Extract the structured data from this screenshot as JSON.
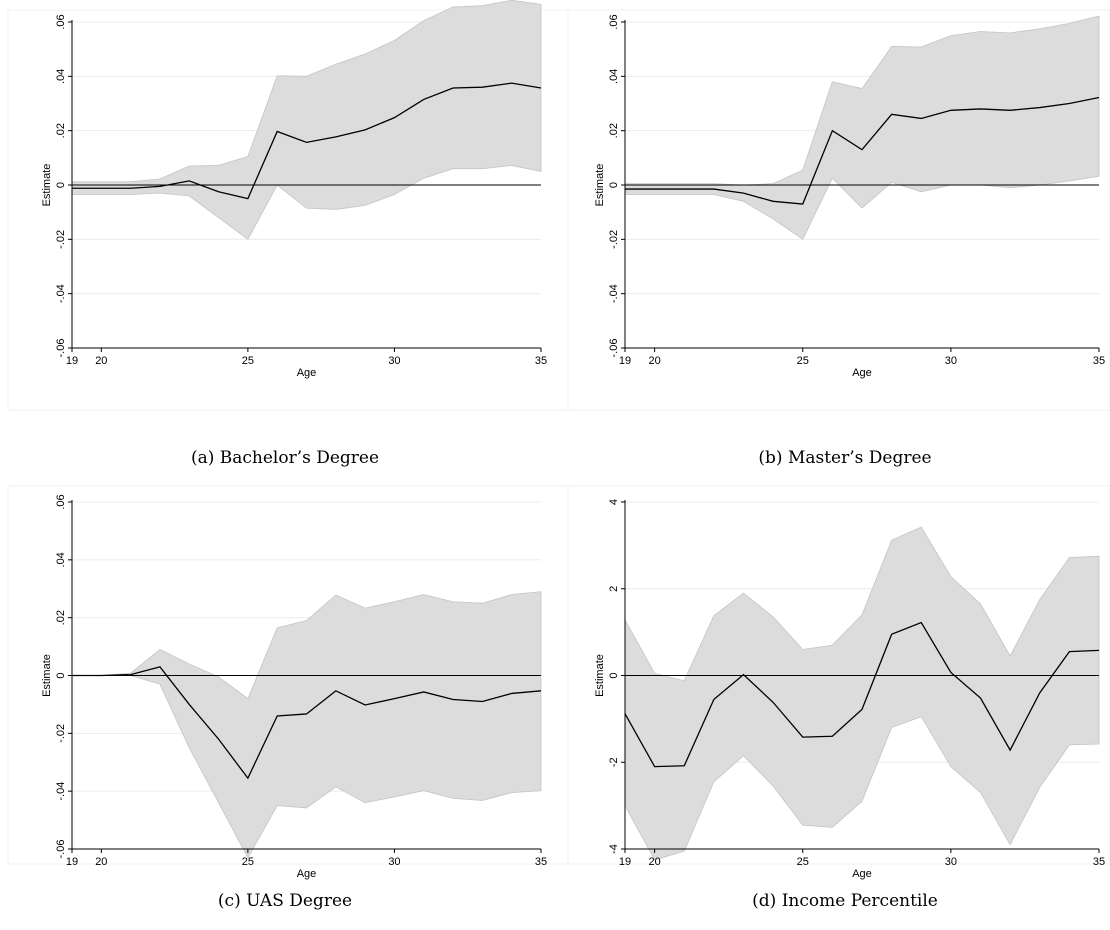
{
  "chart_data": [
    {
      "type": "line",
      "caption": "(a) Bachelor’s Degree",
      "xlabel": "Age",
      "ylabel": "Estimate",
      "xlim": [
        19,
        35
      ],
      "ylim": [
        -0.06,
        0.06
      ],
      "xticks": [
        19,
        20,
        25,
        30,
        35
      ],
      "xtick_labels": [
        "19",
        "20",
        "25",
        "30",
        "35"
      ],
      "yticks": [
        -0.06,
        -0.04,
        -0.02,
        0,
        0.02,
        0.04,
        0.06
      ],
      "ytick_labels": [
        "-.06",
        "-.04",
        "-.02",
        "0",
        ".02",
        ".04",
        ".06"
      ],
      "grid": true,
      "reference_line_y": 0,
      "x": [
        19,
        20,
        21,
        22,
        23,
        24,
        25,
        26,
        27,
        28,
        29,
        30,
        31,
        32,
        33,
        34,
        35
      ],
      "estimate": [
        -0.0012,
        -0.0012,
        -0.0012,
        -0.0005,
        0.0015,
        -0.0025,
        -0.005,
        0.0197,
        0.0157,
        0.0177,
        0.0203,
        0.0248,
        0.0315,
        0.0357,
        0.036,
        0.0375,
        0.0357
      ],
      "ci_lower": [
        -0.0035,
        -0.0035,
        -0.0035,
        -0.003,
        -0.004,
        -0.012,
        -0.02,
        0.0,
        -0.0085,
        -0.009,
        -0.0075,
        -0.0035,
        0.0025,
        0.006,
        0.006,
        0.0072,
        0.005
      ],
      "ci_upper": [
        0.0012,
        0.0012,
        0.0012,
        0.0022,
        0.007,
        0.0072,
        0.0105,
        0.0402,
        0.04,
        0.0445,
        0.0482,
        0.0532,
        0.0605,
        0.0655,
        0.066,
        0.068,
        0.0665
      ]
    },
    {
      "type": "line",
      "caption": "(b) Master’s Degree",
      "xlabel": "Age",
      "ylabel": "Estimate",
      "xlim": [
        19,
        35
      ],
      "ylim": [
        -0.06,
        0.06
      ],
      "xticks": [
        19,
        20,
        25,
        30,
        35
      ],
      "xtick_labels": [
        "19",
        "20",
        "25",
        "30",
        "35"
      ],
      "yticks": [
        -0.06,
        -0.04,
        -0.02,
        0,
        0.02,
        0.04,
        0.06
      ],
      "ytick_labels": [
        "-.06",
        "-.04",
        "-.02",
        "0",
        ".02",
        ".04",
        ".06"
      ],
      "grid": true,
      "reference_line_y": 0,
      "x": [
        19,
        20,
        21,
        22,
        23,
        24,
        25,
        26,
        27,
        28,
        29,
        30,
        31,
        32,
        33,
        34,
        35
      ],
      "estimate": [
        -0.0015,
        -0.0015,
        -0.0015,
        -0.0015,
        -0.003,
        -0.006,
        -0.007,
        0.02,
        0.013,
        0.026,
        0.0245,
        0.0275,
        0.028,
        0.0275,
        0.0285,
        0.03,
        0.0322
      ],
      "ci_lower": [
        -0.0035,
        -0.0035,
        -0.0035,
        -0.0035,
        -0.006,
        -0.0125,
        -0.02,
        0.0025,
        -0.0085,
        0.001,
        -0.0025,
        0.0,
        0.0,
        -0.001,
        0.0,
        0.0015,
        0.0032
      ],
      "ci_upper": [
        0.0005,
        0.0005,
        0.0005,
        0.0005,
        0.0,
        0.0005,
        0.0055,
        0.038,
        0.0355,
        0.051,
        0.0508,
        0.055,
        0.0565,
        0.056,
        0.0575,
        0.0595,
        0.0622
      ]
    },
    {
      "type": "line",
      "caption": "(c) UAS Degree",
      "xlabel": "Age",
      "ylabel": "Estimate",
      "xlim": [
        19,
        35
      ],
      "ylim": [
        -0.06,
        0.06
      ],
      "xticks": [
        19,
        20,
        25,
        30,
        35
      ],
      "xtick_labels": [
        "19",
        "20",
        "25",
        "30",
        "35"
      ],
      "yticks": [
        -0.06,
        -0.04,
        -0.02,
        0,
        0.02,
        0.04,
        0.06
      ],
      "ytick_labels": [
        "-.06",
        "-.04",
        "-.02",
        "0",
        ".02",
        ".04",
        ".06"
      ],
      "grid": true,
      "reference_line_y": 0,
      "x": [
        19,
        20,
        21,
        22,
        23,
        24,
        25,
        26,
        27,
        28,
        29,
        30,
        31,
        32,
        33,
        34,
        35
      ],
      "estimate": [
        0.0,
        0.0,
        0.0003,
        0.003,
        -0.01,
        -0.022,
        -0.0355,
        -0.014,
        -0.0133,
        -0.0053,
        -0.0102,
        -0.008,
        -0.0057,
        -0.0083,
        -0.009,
        -0.0062,
        -0.0053
      ],
      "ci_lower": [
        0.0,
        0.0,
        0.0,
        -0.003,
        -0.025,
        -0.044,
        -0.063,
        -0.045,
        -0.0458,
        -0.0385,
        -0.044,
        -0.042,
        -0.0398,
        -0.0425,
        -0.0432,
        -0.0405,
        -0.0398
      ],
      "ci_upper": [
        0.0,
        0.0,
        0.0008,
        0.009,
        0.004,
        -0.0005,
        -0.008,
        0.0165,
        0.019,
        0.0278,
        0.0233,
        0.0255,
        0.028,
        0.0255,
        0.025,
        0.028,
        0.029
      ]
    },
    {
      "type": "line",
      "caption": "(d) Income Percentile",
      "xlabel": "Age",
      "ylabel": "Estimate",
      "xlim": [
        19,
        35
      ],
      "ylim": [
        -4,
        4
      ],
      "xticks": [
        19,
        20,
        25,
        30,
        35
      ],
      "xtick_labels": [
        "19",
        "20",
        "25",
        "30",
        "35"
      ],
      "yticks": [
        -4,
        -2,
        0,
        2,
        4
      ],
      "ytick_labels": [
        "-4",
        "-2",
        "0",
        "2",
        "4"
      ],
      "grid": true,
      "reference_line_y": 0,
      "x": [
        19,
        20,
        21,
        22,
        23,
        24,
        25,
        26,
        27,
        28,
        29,
        30,
        31,
        32,
        33,
        34,
        35
      ],
      "estimate": [
        -0.88,
        -2.1,
        -2.08,
        -0.55,
        0.02,
        -0.62,
        -1.42,
        -1.4,
        -0.78,
        0.95,
        1.22,
        0.07,
        -0.52,
        -1.72,
        -0.4,
        0.55,
        0.58
      ],
      "ci_lower": [
        -3.0,
        -4.25,
        -4.05,
        -2.45,
        -1.85,
        -2.55,
        -3.45,
        -3.5,
        -2.9,
        -1.2,
        -0.95,
        -2.1,
        -2.7,
        -3.9,
        -2.58,
        -1.6,
        -1.58
      ],
      "ci_upper": [
        1.28,
        0.05,
        -0.12,
        1.38,
        1.9,
        1.35,
        0.6,
        0.7,
        1.4,
        3.12,
        3.42,
        2.28,
        1.65,
        0.45,
        1.75,
        2.72,
        2.75
      ]
    }
  ]
}
